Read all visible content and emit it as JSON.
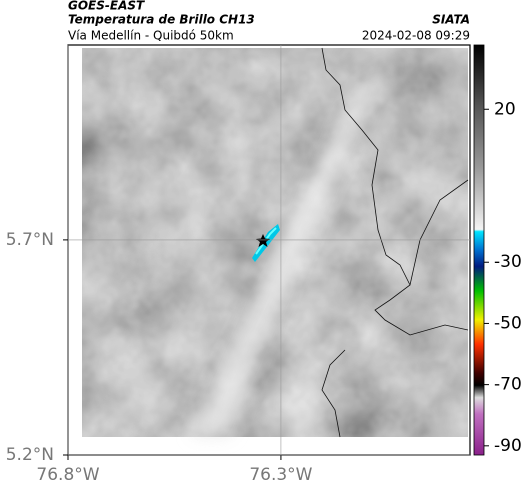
{
  "header": {
    "source": "GOES-EAST",
    "title": "Temperatura de Brillo CH13",
    "subtitle": "Vía Medellín - Quibdó 50km",
    "agency": "SIATA",
    "datetime": "2024-02-08 09:29"
  },
  "map": {
    "xlim": [
      -76.8,
      -75.856
    ],
    "ylim": [
      5.2,
      6.153
    ],
    "xticks": [
      {
        "value": -76.8,
        "label": "76.8°W"
      },
      {
        "value": -76.3,
        "label": "76.3°W"
      }
    ],
    "yticks": [
      {
        "value": 5.2,
        "label": "5.2°N"
      },
      {
        "value": 5.7,
        "label": "5.7°N"
      }
    ],
    "grid": true
  },
  "colorbar": {
    "lim": [
      -93,
      41
    ],
    "ticks": [
      20,
      -30,
      -50,
      -70,
      -90
    ]
  }
}
